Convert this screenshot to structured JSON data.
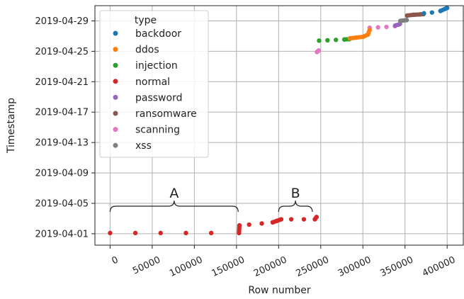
{
  "chart_data": {
    "type": "scatter",
    "xlabel": "Row number",
    "ylabel": "Timestamp",
    "xlim": [
      -18000,
      420000
    ],
    "ylim_days": [
      -1.5,
      30.0
    ],
    "xticks": [
      0,
      50000,
      100000,
      150000,
      200000,
      250000,
      300000,
      350000,
      400000
    ],
    "xtick_labels": [
      "0",
      "50000",
      "100000",
      "150000",
      "200000",
      "250000",
      "300000",
      "350000",
      "400000"
    ],
    "yticks": [
      "2019-04-01",
      "2019-04-05",
      "2019-04-09",
      "2019-04-13",
      "2019-04-17",
      "2019-04-21",
      "2019-04-25",
      "2019-04-29"
    ],
    "grid": true,
    "legend": {
      "title": "type",
      "placement": "top-left",
      "entries": [
        "backdoor",
        "ddos",
        "injection",
        "normal",
        "password",
        "ransomware",
        "scanning",
        "xss"
      ]
    },
    "colors": {
      "backdoor": "#1f77b4",
      "ddos": "#ff7f0e",
      "injection": "#2ca02c",
      "normal": "#d62728",
      "password": "#9467bd",
      "ransomware": "#8c564b",
      "scanning": "#e377c2",
      "xss": "#7f7f7f"
    },
    "series": [
      {
        "name": "normal",
        "points": [
          [
            0,
            0.1
          ],
          [
            30000,
            0.1
          ],
          [
            60000,
            0.1
          ],
          [
            90000,
            0.1
          ],
          [
            120000,
            0.1
          ],
          [
            153000,
            0.1
          ],
          [
            153500,
            1.1
          ],
          [
            165000,
            1.2
          ],
          [
            180000,
            1.35
          ],
          [
            193000,
            1.5
          ],
          [
            198000,
            1.7
          ],
          [
            203000,
            1.9
          ],
          [
            215000,
            1.9
          ],
          [
            230000,
            1.9
          ],
          [
            243000,
            1.9
          ],
          [
            245000,
            2.2
          ]
        ]
      },
      {
        "name": "scanning",
        "points": [
          [
            245500,
            23.9
          ],
          [
            247500,
            24.1
          ],
          [
            308000,
            27.1
          ],
          [
            318000,
            27.15
          ],
          [
            328000,
            27.2
          ],
          [
            338000,
            27.3
          ]
        ]
      },
      {
        "name": "injection",
        "points": [
          [
            248000,
            25.4
          ],
          [
            258000,
            25.45
          ],
          [
            268000,
            25.5
          ],
          [
            278000,
            25.55
          ],
          [
            284000,
            25.6
          ]
        ]
      },
      {
        "name": "ddos",
        "points": [
          [
            284500,
            25.7
          ],
          [
            292000,
            25.8
          ],
          [
            300000,
            25.9
          ],
          [
            306000,
            26.2
          ],
          [
            308000,
            26.8
          ]
        ]
      },
      {
        "name": "password",
        "points": [
          [
            338500,
            27.4
          ],
          [
            342000,
            27.5
          ],
          [
            344000,
            27.6
          ]
        ]
      },
      {
        "name": "xss",
        "points": [
          [
            344500,
            28.0
          ],
          [
            348000,
            28.05
          ],
          [
            352000,
            28.1
          ]
        ]
      },
      {
        "name": "ransomware",
        "points": [
          [
            352500,
            28.7
          ],
          [
            360000,
            28.8
          ],
          [
            368000,
            28.85
          ],
          [
            372000,
            28.9
          ]
        ]
      },
      {
        "name": "backdoor",
        "points": [
          [
            372500,
            29.0
          ],
          [
            382000,
            29.1
          ],
          [
            392000,
            29.3
          ],
          [
            398000,
            29.6
          ],
          [
            400000,
            29.7
          ]
        ]
      }
    ],
    "annotations": [
      {
        "label": "A",
        "x_range": [
          0,
          152000
        ]
      },
      {
        "label": "B",
        "x_range": [
          200000,
          240000
        ]
      }
    ]
  }
}
